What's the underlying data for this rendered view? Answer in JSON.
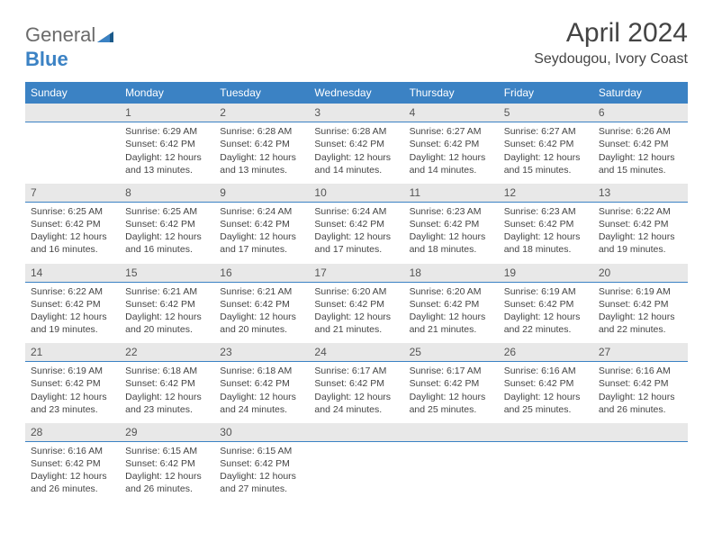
{
  "brand": {
    "part1": "General",
    "part2": "Blue"
  },
  "title": "April 2024",
  "location": "Seydougou, Ivory Coast",
  "colors": {
    "header_bg": "#3b82c4",
    "header_fg": "#ffffff",
    "daynum_bg": "#e8e8e8",
    "daynum_border": "#3b82c4",
    "text": "#444444",
    "logo_gray": "#6b6b6b",
    "logo_blue": "#3b82c4",
    "page_bg": "#ffffff"
  },
  "typography": {
    "title_fontsize": 30,
    "location_fontsize": 16,
    "dayhead_fontsize": 12,
    "daynum_fontsize": 12,
    "cell_fontsize": 10.5
  },
  "dayNames": [
    "Sunday",
    "Monday",
    "Tuesday",
    "Wednesday",
    "Thursday",
    "Friday",
    "Saturday"
  ],
  "weeks": [
    [
      null,
      {
        "n": "1",
        "sr": "Sunrise: 6:29 AM",
        "ss": "Sunset: 6:42 PM",
        "dl": "Daylight: 12 hours and 13 minutes."
      },
      {
        "n": "2",
        "sr": "Sunrise: 6:28 AM",
        "ss": "Sunset: 6:42 PM",
        "dl": "Daylight: 12 hours and 13 minutes."
      },
      {
        "n": "3",
        "sr": "Sunrise: 6:28 AM",
        "ss": "Sunset: 6:42 PM",
        "dl": "Daylight: 12 hours and 14 minutes."
      },
      {
        "n": "4",
        "sr": "Sunrise: 6:27 AM",
        "ss": "Sunset: 6:42 PM",
        "dl": "Daylight: 12 hours and 14 minutes."
      },
      {
        "n": "5",
        "sr": "Sunrise: 6:27 AM",
        "ss": "Sunset: 6:42 PM",
        "dl": "Daylight: 12 hours and 15 minutes."
      },
      {
        "n": "6",
        "sr": "Sunrise: 6:26 AM",
        "ss": "Sunset: 6:42 PM",
        "dl": "Daylight: 12 hours and 15 minutes."
      }
    ],
    [
      {
        "n": "7",
        "sr": "Sunrise: 6:25 AM",
        "ss": "Sunset: 6:42 PM",
        "dl": "Daylight: 12 hours and 16 minutes."
      },
      {
        "n": "8",
        "sr": "Sunrise: 6:25 AM",
        "ss": "Sunset: 6:42 PM",
        "dl": "Daylight: 12 hours and 16 minutes."
      },
      {
        "n": "9",
        "sr": "Sunrise: 6:24 AM",
        "ss": "Sunset: 6:42 PM",
        "dl": "Daylight: 12 hours and 17 minutes."
      },
      {
        "n": "10",
        "sr": "Sunrise: 6:24 AM",
        "ss": "Sunset: 6:42 PM",
        "dl": "Daylight: 12 hours and 17 minutes."
      },
      {
        "n": "11",
        "sr": "Sunrise: 6:23 AM",
        "ss": "Sunset: 6:42 PM",
        "dl": "Daylight: 12 hours and 18 minutes."
      },
      {
        "n": "12",
        "sr": "Sunrise: 6:23 AM",
        "ss": "Sunset: 6:42 PM",
        "dl": "Daylight: 12 hours and 18 minutes."
      },
      {
        "n": "13",
        "sr": "Sunrise: 6:22 AM",
        "ss": "Sunset: 6:42 PM",
        "dl": "Daylight: 12 hours and 19 minutes."
      }
    ],
    [
      {
        "n": "14",
        "sr": "Sunrise: 6:22 AM",
        "ss": "Sunset: 6:42 PM",
        "dl": "Daylight: 12 hours and 19 minutes."
      },
      {
        "n": "15",
        "sr": "Sunrise: 6:21 AM",
        "ss": "Sunset: 6:42 PM",
        "dl": "Daylight: 12 hours and 20 minutes."
      },
      {
        "n": "16",
        "sr": "Sunrise: 6:21 AM",
        "ss": "Sunset: 6:42 PM",
        "dl": "Daylight: 12 hours and 20 minutes."
      },
      {
        "n": "17",
        "sr": "Sunrise: 6:20 AM",
        "ss": "Sunset: 6:42 PM",
        "dl": "Daylight: 12 hours and 21 minutes."
      },
      {
        "n": "18",
        "sr": "Sunrise: 6:20 AM",
        "ss": "Sunset: 6:42 PM",
        "dl": "Daylight: 12 hours and 21 minutes."
      },
      {
        "n": "19",
        "sr": "Sunrise: 6:19 AM",
        "ss": "Sunset: 6:42 PM",
        "dl": "Daylight: 12 hours and 22 minutes."
      },
      {
        "n": "20",
        "sr": "Sunrise: 6:19 AM",
        "ss": "Sunset: 6:42 PM",
        "dl": "Daylight: 12 hours and 22 minutes."
      }
    ],
    [
      {
        "n": "21",
        "sr": "Sunrise: 6:19 AM",
        "ss": "Sunset: 6:42 PM",
        "dl": "Daylight: 12 hours and 23 minutes."
      },
      {
        "n": "22",
        "sr": "Sunrise: 6:18 AM",
        "ss": "Sunset: 6:42 PM",
        "dl": "Daylight: 12 hours and 23 minutes."
      },
      {
        "n": "23",
        "sr": "Sunrise: 6:18 AM",
        "ss": "Sunset: 6:42 PM",
        "dl": "Daylight: 12 hours and 24 minutes."
      },
      {
        "n": "24",
        "sr": "Sunrise: 6:17 AM",
        "ss": "Sunset: 6:42 PM",
        "dl": "Daylight: 12 hours and 24 minutes."
      },
      {
        "n": "25",
        "sr": "Sunrise: 6:17 AM",
        "ss": "Sunset: 6:42 PM",
        "dl": "Daylight: 12 hours and 25 minutes."
      },
      {
        "n": "26",
        "sr": "Sunrise: 6:16 AM",
        "ss": "Sunset: 6:42 PM",
        "dl": "Daylight: 12 hours and 25 minutes."
      },
      {
        "n": "27",
        "sr": "Sunrise: 6:16 AM",
        "ss": "Sunset: 6:42 PM",
        "dl": "Daylight: 12 hours and 26 minutes."
      }
    ],
    [
      {
        "n": "28",
        "sr": "Sunrise: 6:16 AM",
        "ss": "Sunset: 6:42 PM",
        "dl": "Daylight: 12 hours and 26 minutes."
      },
      {
        "n": "29",
        "sr": "Sunrise: 6:15 AM",
        "ss": "Sunset: 6:42 PM",
        "dl": "Daylight: 12 hours and 26 minutes."
      },
      {
        "n": "30",
        "sr": "Sunrise: 6:15 AM",
        "ss": "Sunset: 6:42 PM",
        "dl": "Daylight: 12 hours and 27 minutes."
      },
      null,
      null,
      null,
      null
    ]
  ]
}
